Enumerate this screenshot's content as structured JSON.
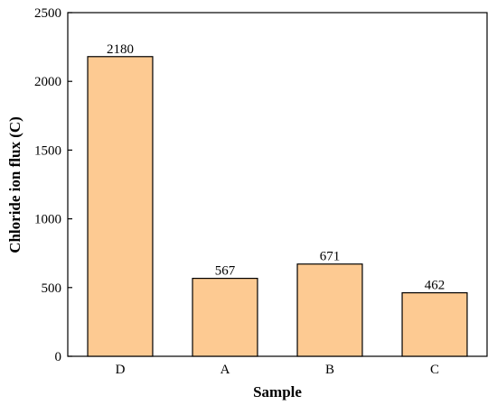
{
  "chart_data": {
    "type": "bar",
    "categories": [
      "D",
      "A",
      "B",
      "C"
    ],
    "values": [
      2180,
      567,
      671,
      462
    ],
    "data_labels": [
      "2180",
      "567",
      "671",
      "462"
    ],
    "xlabel": "Sample",
    "ylabel": "Chloride ion flux (C)",
    "ylim": [
      0,
      2500
    ],
    "yticks": [
      0,
      500,
      1000,
      1500,
      2000,
      2500
    ],
    "grid": false,
    "legend": "none",
    "bar_color": "#FDCA92",
    "bar_edge_color": "#000000"
  }
}
